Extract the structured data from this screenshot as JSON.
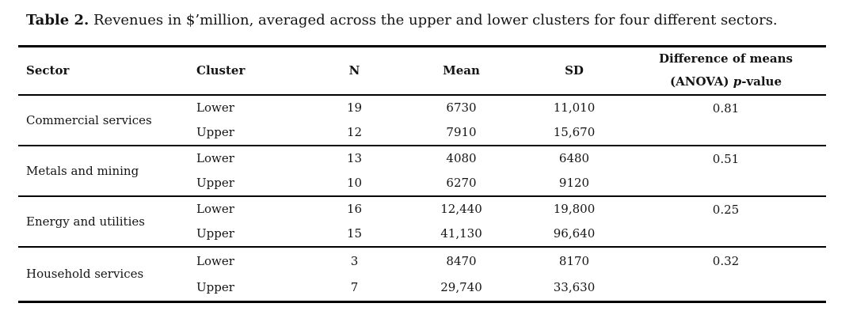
{
  "caption": {
    "label": "Table 2.",
    "text": " Revenues in $’million, averaged across the upper and lower clusters for four different sectors."
  },
  "table": {
    "headers": {
      "sector": "Sector",
      "cluster": "Cluster",
      "n": "N",
      "mean": "Mean",
      "sd": "SD",
      "diff_line1": "Difference of means",
      "diff_line2_prefix": "(ANOVA) ",
      "diff_line2_italic": "p",
      "diff_line2_suffix": "-value"
    },
    "sections": [
      {
        "sector": "Commercial services",
        "p_value": "0.81",
        "rows": [
          {
            "cluster": "Lower",
            "n": "19",
            "mean": "6730",
            "sd": "11,010"
          },
          {
            "cluster": "Upper",
            "n": "12",
            "mean": "7910",
            "sd": "15,670"
          }
        ]
      },
      {
        "sector": "Metals and mining",
        "p_value": "0.51",
        "rows": [
          {
            "cluster": "Lower",
            "n": "13",
            "mean": "4080",
            "sd": "6480"
          },
          {
            "cluster": "Upper",
            "n": "10",
            "mean": "6270",
            "sd": "9120"
          }
        ]
      },
      {
        "sector": "Energy and utilities",
        "p_value": "0.25",
        "rows": [
          {
            "cluster": "Lower",
            "n": "16",
            "mean": "12,440",
            "sd": "19,800"
          },
          {
            "cluster": "Upper",
            "n": "15",
            "mean": "41,130",
            "sd": "96,640"
          }
        ]
      },
      {
        "sector": "Household services",
        "p_value": "0.32",
        "rows": [
          {
            "cluster": "Lower",
            "n": "3",
            "mean": "8470",
            "sd": "8170"
          },
          {
            "cluster": "Upper",
            "n": "7",
            "mean": "29,740",
            "sd": "33,630"
          }
        ]
      }
    ]
  }
}
